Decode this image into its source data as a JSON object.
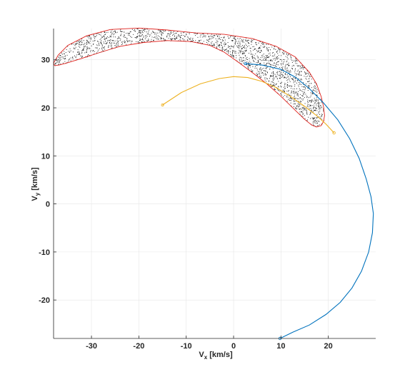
{
  "chart_data": {
    "type": "scatter",
    "title": "",
    "xlabel": {
      "main": "V",
      "sub": "x",
      "unit": " [km/s]"
    },
    "ylabel": {
      "main": "V",
      "sub": "y",
      "unit": " [km/s]"
    },
    "xlim": [
      -38,
      30
    ],
    "ylim": [
      -28,
      36.5
    ],
    "xticks": [
      -30,
      -20,
      -10,
      0,
      10,
      20
    ],
    "yticks": [
      -20,
      -10,
      0,
      10,
      20,
      30
    ],
    "grid": true,
    "legend": "none",
    "colors": {
      "cloud": "#000000",
      "outline": "#e0201b",
      "orbit_blue": "#0072bd",
      "orbit_orange": "#edb120",
      "axis": "#262626",
      "grid": "#e6e6e6"
    },
    "series": [
      {
        "kind": "cloud-outline",
        "color": "#e0201b",
        "x": [
          -38,
          -37,
          -35,
          -31,
          -26,
          -20,
          -14,
          -8,
          -2,
          4,
          9,
          13,
          16,
          17.5,
          18.5,
          19,
          19.2,
          19,
          18.5,
          17.5,
          16.5,
          15,
          13,
          10,
          7,
          4,
          1,
          -2,
          -5,
          -9,
          -14,
          -19,
          -24,
          -28,
          -32,
          -35,
          -36.8,
          -37.8,
          -38
        ],
        "y": [
          29.3,
          31,
          33,
          35,
          36.3,
          36.6,
          36.2,
          35.6,
          35.3,
          34.4,
          32.8,
          30.6,
          27.4,
          25,
          22.3,
          20.2,
          18.4,
          17.2,
          16.3,
          16,
          16.4,
          17.6,
          19.5,
          22.4,
          25,
          27.3,
          29.5,
          31.6,
          33,
          33.8,
          34,
          33.6,
          32.8,
          31.6,
          30.3,
          29.4,
          28.9,
          28.8,
          29.3
        ]
      },
      {
        "kind": "orbit",
        "color": "#0072bd",
        "x": [
          2.5,
          6,
          10,
          13,
          16,
          19,
          22,
          24.5,
          26.5,
          28,
          29,
          29.5,
          29.3,
          28.5,
          27,
          25,
          22.5,
          19.5,
          16,
          12.5,
          9.8
        ],
        "y": [
          29.2,
          28.9,
          28,
          26.4,
          24,
          21,
          17.5,
          13.6,
          9.5,
          5.2,
          1.5,
          -2,
          -6,
          -10,
          -14,
          -17.5,
          -20.5,
          -23,
          -25.2,
          -26.7,
          -28
        ]
      },
      {
        "kind": "orbit",
        "color": "#edb120",
        "x": [
          -15,
          -11,
          -7,
          -3,
          0,
          3,
          6,
          9,
          12,
          15,
          17.5,
          19.5,
          21.2
        ],
        "y": [
          20.6,
          23.2,
          25,
          26.1,
          26.5,
          26.3,
          25.5,
          24.2,
          22.4,
          20.3,
          18.4,
          16.6,
          14.8
        ]
      }
    ]
  }
}
